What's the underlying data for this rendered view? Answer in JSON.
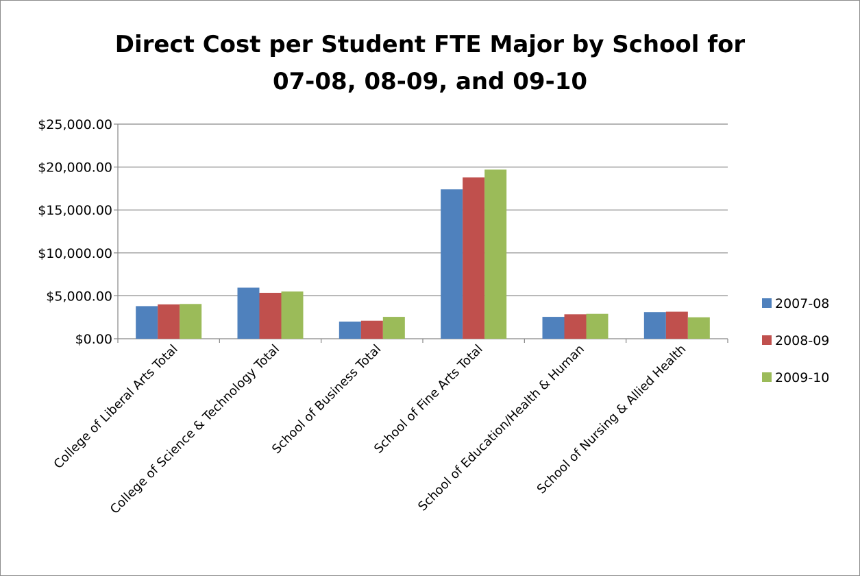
{
  "chart_data": {
    "type": "bar",
    "title_lines": [
      "Direct Cost per Student FTE Major by School for",
      "07-08, 08-09, and 09-10"
    ],
    "categories": [
      "College of Liberal Arts Total",
      "College of Science & Technology Total",
      "School of Business Total",
      "School of Fine Arts Total",
      "School of Education/Health & Human",
      "School of Nursing & Allied Health"
    ],
    "series": [
      {
        "name": "2007-08",
        "color": "#4f81bd",
        "values": [
          3800,
          5950,
          2000,
          17400,
          2550,
          3100
        ]
      },
      {
        "name": "2008-09",
        "color": "#c0504d",
        "values": [
          4000,
          5350,
          2100,
          18800,
          2850,
          3150
        ]
      },
      {
        "name": "2009-10",
        "color": "#9bbb59",
        "values": [
          4050,
          5500,
          2550,
          19700,
          2900,
          2500
        ]
      }
    ],
    "ylim": [
      0,
      25000
    ],
    "yticks": [
      0,
      5000,
      10000,
      15000,
      20000,
      25000
    ],
    "ytick_labels": [
      "$0.00",
      "$5,000.00",
      "$10,000.00",
      "$15,000.00",
      "$20,000.00",
      "$25,000.00"
    ],
    "xlabel": "",
    "ylabel": "",
    "grid": true,
    "legend_position": "right"
  }
}
